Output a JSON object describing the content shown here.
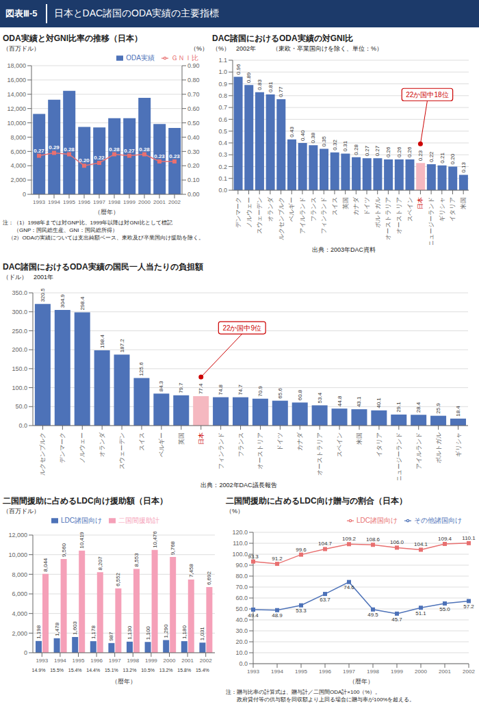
{
  "title": "図表Ⅲ-5",
  "subtitle": "日本とDAC諸国のODA実績の主要指標",
  "chart_data": [
    {
      "type": "bar",
      "title": "ODA実績と対GNI比率の推移（日本）",
      "xlabel": "（暦年）",
      "ylabel": "（百万ドル）",
      "y2label": "（%）",
      "categories": [
        "1993",
        "1994",
        "1995",
        "1996",
        "1997",
        "1998",
        "1999",
        "2000",
        "2001",
        "2002"
      ],
      "series": [
        {
          "name": "ODA実績",
          "type": "bar",
          "color": "#4d72b8",
          "values": [
            11259,
            13239,
            14489,
            9439,
            9358,
            10640,
            10640,
            13508,
            9847,
            9283
          ]
        },
        {
          "name": "ＧＮＩ比",
          "type": "line",
          "axis": "y2",
          "color": "#e87070",
          "marker": "square",
          "values": [
            0.27,
            0.29,
            0.28,
            0.2,
            0.22,
            0.28,
            0.27,
            0.28,
            0.23,
            0.23
          ],
          "data_labels": true,
          "value_labels": [
            "0.27",
            "0.29",
            "0.28",
            "0.20",
            "0.22",
            "0.28",
            "0.27",
            "0.28",
            "0.23",
            "0.23"
          ]
        }
      ],
      "ylim": [
        0,
        18000
      ],
      "yticks": [
        0,
        {
          "value": 2000,
          "label": "2,000"
        },
        {
          "value": 4000,
          "label": "4,000"
        },
        {
          "value": 6000,
          "label": "6,000"
        },
        {
          "value": 8000,
          "label": "8,000"
        },
        {
          "value": 10000,
          "label": "10,000"
        },
        {
          "value": 12000,
          "label": "12,000"
        },
        {
          "value": 14000,
          "label": "14,000"
        },
        {
          "value": 16000,
          "label": "16,000"
        },
        {
          "value": 18000,
          "label": "18,000"
        }
      ],
      "y2lim": [
        0,
        0.9
      ],
      "y2ticks": [
        {
          "value": 0,
          "label": "0.00"
        },
        {
          "value": 0.1,
          "label": "0.10"
        },
        {
          "value": 0.2,
          "label": "0.20"
        },
        {
          "value": 0.3,
          "label": "0.30"
        },
        {
          "value": 0.4,
          "label": "0.40"
        },
        {
          "value": 0.5,
          "label": "0.50"
        },
        {
          "value": 0.6,
          "label": "0.60"
        },
        {
          "value": 0.7,
          "label": "0.70"
        },
        {
          "value": 0.8,
          "label": "0.80"
        },
        {
          "value": 0.9,
          "label": "0.90"
        }
      ],
      "grid": true,
      "legend": "upper right",
      "note": "注：（1）1998年までは対GNP比、1999年以降は対GNI比として標記\n　　（GNP：国民総生産、GNI：国民総所得）\n　（2）ODAの実績については支出純額ベース、東欧及び卒業国向け援助を除く。"
    },
    {
      "type": "bar",
      "title": "DAC諸国におけるODA実績の対GNI比",
      "subtitle": "（東欧・卒業国向けを除く、単位：%）",
      "ylabel": "（%）　2002年",
      "categories": [
        "デンマーク",
        "ノルウェー",
        "スウェーデン",
        "オランダ",
        "ルクセンブルク",
        "ベルギー",
        "アイルランド",
        "フランス",
        "フィンランド",
        "スイス",
        "英国",
        "カナダ",
        "ドイツ",
        "ポルトガル",
        "オーストラリア",
        "オーストリア",
        "スペイン",
        "日本",
        "ニュージーランド",
        "ギリシャ",
        "イタリア",
        "米国"
      ],
      "values": [
        0.96,
        0.89,
        0.83,
        0.81,
        0.77,
        0.43,
        0.4,
        0.38,
        0.35,
        0.32,
        0.31,
        0.28,
        0.27,
        0.27,
        0.26,
        0.26,
        0.26,
        0.23,
        0.22,
        0.21,
        0.2,
        0.13
      ],
      "colors": [
        "#4d72b8",
        "#4d72b8",
        "#4d72b8",
        "#4d72b8",
        "#4d72b8",
        "#4d72b8",
        "#4d72b8",
        "#4d72b8",
        "#4d72b8",
        "#4d72b8",
        "#4d72b8",
        "#4d72b8",
        "#4d72b8",
        "#4d72b8",
        "#4d72b8",
        "#4d72b8",
        "#4d72b8",
        "#f5b8c0",
        "#4d72b8",
        "#4d72b8",
        "#4d72b8",
        "#4d72b8"
      ],
      "data_labels": true,
      "value_labels": [
        "0.96",
        "0.89",
        "0.83",
        "0.81",
        "0.77",
        "0.43",
        "0.40",
        "0.38",
        "0.35",
        "0.32",
        "0.31",
        "0.28",
        "0.27",
        "0.27",
        "0.26",
        "0.26",
        "0.26",
        "0.23",
        "0.22",
        "0.21",
        "0.20",
        "0.13"
      ],
      "ylim": [
        0,
        1.1
      ],
      "yticks": [
        {
          "value": 0,
          "label": "0.0"
        },
        0.1,
        0.2,
        0.3,
        0.4,
        0.5,
        0.6,
        0.7,
        0.8,
        0.9,
        {
          "value": 1,
          "label": "1.0"
        },
        1.1
      ],
      "grid": true,
      "annotation": {
        "text": "22か国中18位",
        "category": "日本",
        "color": "#cc0000"
      },
      "source": "出典：2003年DAC資料"
    },
    {
      "type": "bar",
      "title": "DAC諸国におけるODA実績の国民一人当たりの負担額",
      "ylabel": "（ドル）　2001年",
      "categories": [
        "ルクセンブルク",
        "デンマーク",
        "ノルウェー",
        "オランダ",
        "スウェーデン",
        "スイス",
        "ベルギー",
        "英国",
        "日本",
        "フィンランド",
        "フランス",
        "オーストリア",
        "ドイツ",
        "カナダ",
        "オーストラリア",
        "スペイン",
        "米国",
        "イタリア",
        "ニュージーランド",
        "アイルランド",
        "ボルトガル",
        "ギリシャ"
      ],
      "values": [
        320.5,
        304.9,
        298.4,
        198.4,
        187.2,
        125.6,
        84.3,
        79.7,
        77.4,
        74.8,
        74.7,
        70.9,
        65.6,
        60.8,
        53.4,
        44.8,
        43.1,
        40.1,
        29.1,
        28.4,
        25.9,
        18.4
      ],
      "colors": [
        "#4d72b8",
        "#4d72b8",
        "#4d72b8",
        "#4d72b8",
        "#4d72b8",
        "#4d72b8",
        "#4d72b8",
        "#4d72b8",
        "#f5b8c0",
        "#4d72b8",
        "#4d72b8",
        "#4d72b8",
        "#4d72b8",
        "#4d72b8",
        "#4d72b8",
        "#4d72b8",
        "#4d72b8",
        "#4d72b8",
        "#4d72b8",
        "#4d72b8",
        "#4d72b8",
        "#4d72b8"
      ],
      "data_labels": true,
      "ylim": [
        0,
        350
      ],
      "yticks": [
        {
          "value": 0,
          "label": "0.0"
        },
        {
          "value": 50,
          "label": "50.0"
        },
        {
          "value": 100,
          "label": "100.0"
        },
        {
          "value": 150,
          "label": "150.0"
        },
        {
          "value": 200,
          "label": "200.0"
        },
        {
          "value": 250,
          "label": "250.0"
        },
        {
          "value": 300,
          "label": "300.0"
        },
        {
          "value": 350,
          "label": "350.0"
        }
      ],
      "grid": true,
      "annotation": {
        "text": "22か国中9位",
        "category": "日本",
        "color": "#cc0000"
      },
      "source": "出典：2002年DAC議長報告"
    },
    {
      "type": "bar",
      "title": "二国間援助に占めるLDC向け援助額（日本）",
      "xlabel": "（暦年）",
      "ylabel": "（百万ドル）",
      "categories": [
        "1993",
        "1994",
        "1995",
        "1996",
        "1997",
        "1998",
        "1999",
        "2000",
        "2001",
        "2002"
      ],
      "series": [
        {
          "name": "LDC諸国向け",
          "color": "#4d72b8",
          "values": [
            1198,
            1478,
            1603,
            1178,
            987,
            1130,
            1100,
            1290,
            1180,
            1031
          ],
          "data_labels": true,
          "value_labels": [
            "1,198",
            "1,478",
            "1,603",
            "1,178",
            "987",
            "1,130",
            "1,100",
            "1,290",
            "1,180",
            "1,031"
          ],
          "shares": [
            14.9,
            15.5,
            15.4,
            14.4,
            15.1,
            13.2,
            10.5,
            13.2,
            15.8,
            15.4
          ],
          "share_labels": [
            "14.9%",
            "15.5%",
            "15.4%",
            "14.4%",
            "15.1%",
            "13.2%",
            "10.5%",
            "13.2%",
            "15.8%",
            "15.4%"
          ]
        },
        {
          "name": "二国間援助計",
          "color": "#f5a0b8",
          "values": [
            8044,
            9560,
            10419,
            8207,
            6552,
            8553,
            10476,
            9768,
            7458,
            6692
          ],
          "data_labels": true,
          "value_labels": [
            "8,044",
            "9,560",
            "10,419",
            "8,207",
            "6,552",
            "8,553",
            "10,476",
            "9,768",
            "7,458",
            "6,692"
          ]
        }
      ],
      "ylim": [
        0,
        12000
      ],
      "yticks": [
        0,
        {
          "value": 2000,
          "label": "2,000"
        },
        {
          "value": 4000,
          "label": "4,000"
        },
        {
          "value": 6000,
          "label": "6,000"
        },
        {
          "value": 8000,
          "label": "8,000"
        },
        {
          "value": 10000,
          "label": "10,000"
        },
        {
          "value": 12000,
          "label": "12,000"
        }
      ],
      "grid": true,
      "legend": "upper center"
    },
    {
      "type": "line",
      "title": "二国間援助に占めるLDC向け贈与の割合（日本）",
      "xlabel": "（暦年）",
      "ylabel": "（%）",
      "categories": [
        "1993",
        "1994",
        "1995",
        "1996",
        "1997",
        "1998",
        "1999",
        "2000",
        "2001",
        "2002"
      ],
      "series": [
        {
          "name": "LDC諸国向け",
          "color": "#e87070",
          "marker": "square",
          "values": [
            93.3,
            91.2,
            99.6,
            104.7,
            109.2,
            108.6,
            106.0,
            104.1,
            109.4,
            110.1
          ],
          "data_labels": true,
          "value_labels": [
            "93.3",
            "91.2",
            "99.6",
            "104.7",
            "109.2",
            "108.6",
            "106.0",
            "104.1",
            "109.4",
            "110.1"
          ]
        },
        {
          "name": "その他諸国向け",
          "color": "#4d72b8",
          "marker": "square",
          "values": [
            49.4,
            48.9,
            53.3,
            63.7,
            74.6,
            49.5,
            45.7,
            51.1,
            55.0,
            57.2
          ],
          "data_labels": true,
          "value_labels": [
            "49.4",
            "48.9",
            "53.3",
            "63.7",
            "74.6",
            "49.5",
            "45.7",
            "51.1",
            "55.0",
            "57.2"
          ]
        }
      ],
      "ylim": [
        0,
        120
      ],
      "yticks": [
        {
          "value": 0,
          "label": "0.0"
        },
        {
          "value": 10,
          "label": "10.0"
        },
        {
          "value": 20,
          "label": "20.0"
        },
        {
          "value": 30,
          "label": "30.0"
        },
        {
          "value": 40,
          "label": "40.0"
        },
        {
          "value": 50,
          "label": "50.0"
        },
        {
          "value": 60,
          "label": "60.0"
        },
        {
          "value": 70,
          "label": "70.0"
        },
        {
          "value": 80,
          "label": "80.0"
        },
        {
          "value": 90,
          "label": "90.0"
        },
        {
          "value": 100,
          "label": "100.0"
        },
        {
          "value": 110,
          "label": "110.0"
        },
        {
          "value": 120,
          "label": "120.0"
        }
      ],
      "grid": true,
      "legend": "upper right",
      "note": "注：贈与比率の計算式は、贈与計／二国間ODA計×100（%）。\n　　政府貸付等の供与額を回収額より上回る場合に贈与率が100%を超える。"
    }
  ]
}
